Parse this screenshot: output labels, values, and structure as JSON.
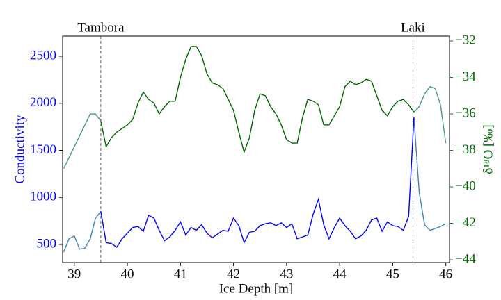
{
  "chart_data": {
    "type": "line",
    "xlabel": "Ice Depth [m]",
    "ylabel": "Conductivity",
    "y2label": "δ¹⁸O [‰]",
    "y_color": "#0000ff",
    "y2_color": "#006400",
    "x": [
      38.8,
      38.9,
      39.0,
      39.1,
      39.2,
      39.3,
      39.4,
      39.5,
      39.6,
      39.7,
      39.8,
      39.9,
      40.0,
      40.1,
      40.2,
      40.3,
      40.4,
      40.5,
      40.6,
      40.7,
      40.8,
      40.9,
      41.0,
      41.1,
      41.2,
      41.3,
      41.4,
      41.5,
      41.6,
      41.7,
      41.8,
      41.9,
      42.0,
      42.1,
      42.2,
      42.3,
      42.4,
      42.5,
      42.6,
      42.7,
      42.8,
      42.9,
      43.0,
      43.1,
      43.2,
      43.3,
      43.4,
      43.5,
      43.6,
      43.7,
      43.8,
      43.9,
      44.0,
      44.1,
      44.2,
      44.3,
      44.4,
      44.5,
      44.6,
      44.7,
      44.8,
      44.9,
      45.0,
      45.1,
      45.2,
      45.3,
      45.4,
      45.5,
      45.6,
      45.7,
      45.8,
      45.9,
      46.0
    ],
    "series": [
      {
        "color": "#4682b4",
        "axis": "y",
        "values": [
          420,
          560,
          590,
          450,
          460,
          560,
          780,
          850,
          null,
          null,
          null,
          null,
          null,
          null,
          null,
          null,
          null,
          null,
          null,
          null,
          null,
          null,
          null,
          null,
          null,
          null,
          null,
          null,
          null,
          null,
          null,
          null,
          null,
          null,
          null,
          null,
          null,
          null,
          null,
          null,
          null,
          null,
          null,
          null,
          null,
          null,
          null,
          null,
          null,
          null,
          null,
          null,
          null,
          null,
          null,
          null,
          null,
          null,
          null,
          null,
          null,
          null,
          null,
          null,
          null,
          null,
          1850,
          1050,
          710,
          650,
          670,
          690,
          720
        ]
      },
      {
        "color": "#0000ff",
        "axis": "y",
        "values": [
          null,
          null,
          null,
          null,
          null,
          null,
          null,
          850,
          520,
          510,
          470,
          560,
          620,
          680,
          690,
          640,
          810,
          780,
          650,
          540,
          580,
          650,
          740,
          600,
          680,
          650,
          710,
          620,
          570,
          610,
          650,
          640,
          780,
          700,
          520,
          630,
          640,
          700,
          720,
          730,
          700,
          730,
          680,
          720,
          560,
          580,
          600,
          820,
          980,
          710,
          560,
          680,
          780,
          700,
          640,
          560,
          590,
          650,
          760,
          780,
          640,
          740,
          700,
          690,
          650,
          800,
          1850,
          null,
          null,
          null,
          null,
          null,
          null
        ]
      },
      {
        "color": "#4a9a7a",
        "axis": "y2",
        "values": [
          -39.0,
          -38.4,
          -37.8,
          -37.2,
          -36.6,
          -36.0,
          -36.0,
          -36.4,
          null,
          null,
          null,
          null,
          null,
          null,
          null,
          null,
          null,
          null,
          null,
          null,
          null,
          null,
          null,
          null,
          null,
          null,
          null,
          null,
          null,
          null,
          null,
          null,
          null,
          null,
          null,
          null,
          null,
          null,
          null,
          null,
          null,
          null,
          null,
          null,
          null,
          null,
          null,
          null,
          null,
          null,
          null,
          null,
          null,
          null,
          null,
          null,
          null,
          null,
          null,
          null,
          null,
          null,
          null,
          null,
          null,
          null,
          -35.9,
          -35.6,
          -34.9,
          -34.5,
          -34.6,
          -35.5,
          -37.6
        ]
      },
      {
        "color": "#006400",
        "axis": "y2",
        "values": [
          null,
          null,
          null,
          null,
          null,
          null,
          null,
          -36.4,
          -37.8,
          -37.3,
          -37.0,
          -36.8,
          -36.6,
          -36.3,
          -35.4,
          -34.8,
          -35.2,
          -35.4,
          -36.0,
          -35.6,
          -35.3,
          -35.3,
          -34.0,
          -33.0,
          -32.3,
          -32.3,
          -32.8,
          -33.8,
          -34.3,
          -34.4,
          -34.6,
          -35.2,
          -35.8,
          -37.0,
          -38.1,
          -37.3,
          -35.8,
          -34.9,
          -35.0,
          -35.6,
          -36.0,
          -36.6,
          -37.4,
          -37.6,
          -37.6,
          -36.2,
          -35.2,
          -35.3,
          -35.5,
          -36.6,
          -36.6,
          -36.1,
          -35.6,
          -34.5,
          -34.2,
          -34.4,
          -34.3,
          -34.1,
          -34.2,
          -35.0,
          -35.8,
          -36.1,
          -35.6,
          -35.3,
          -35.2,
          -35.5,
          -35.9,
          null,
          null,
          null,
          null,
          null,
          null
        ]
      }
    ],
    "annotations": [
      {
        "text": "Tambora",
        "x": 39.5
      },
      {
        "text": "Laki",
        "x": 45.38
      }
    ],
    "xlim": [
      38.78,
      46.07
    ],
    "xticks": [
      39,
      40,
      41,
      42,
      43,
      44,
      45,
      46
    ],
    "ylim": [
      308,
      2714
    ],
    "yticks": [
      500,
      1000,
      1500,
      2000,
      2500
    ],
    "y2lim": [
      -44.15,
      -31.73
    ],
    "y2ticks": [
      {
        "value": -32,
        "label": "−32"
      },
      {
        "value": -34,
        "label": "−34"
      },
      {
        "value": -36,
        "label": "−36"
      },
      {
        "value": -38,
        "label": "−38"
      },
      {
        "value": -40,
        "label": "−40"
      },
      {
        "value": -42,
        "label": "−42"
      },
      {
        "value": -44,
        "label": "−44"
      }
    ],
    "grid": false
  }
}
